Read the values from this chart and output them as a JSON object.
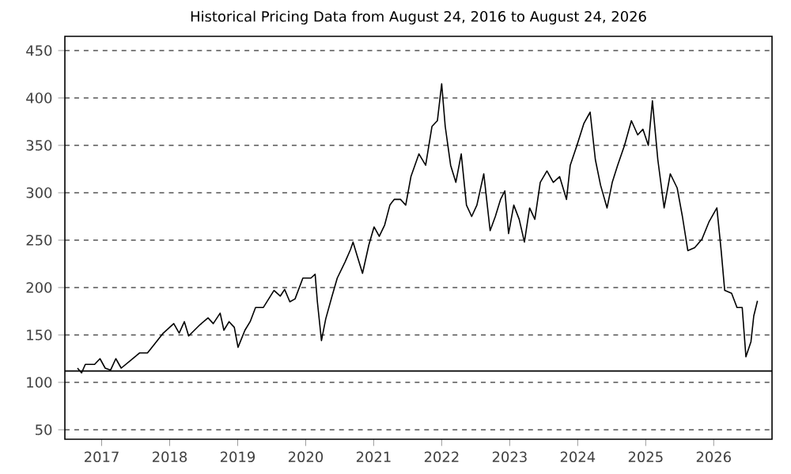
{
  "chart_data": {
    "type": "line",
    "title": "Historical Pricing Data from August 24, 2016 to August 24, 2026",
    "x": [
      "2016-08-24",
      "2016-09-15",
      "2016-10-05",
      "2016-11-24",
      "2016-12-23",
      "2017-01-20",
      "2017-02-18",
      "2017-03-18",
      "2017-04-16",
      "2017-06-11",
      "2017-07-23",
      "2017-09-04",
      "2017-10-02",
      "2017-11-28",
      "2018-01-23",
      "2018-02-21",
      "2018-03-21",
      "2018-04-13",
      "2018-06-14",
      "2018-07-26",
      "2018-08-23",
      "2018-09-29",
      "2018-10-19",
      "2018-11-16",
      "2018-12-14",
      "2019-01-03",
      "2019-02-09",
      "2019-03-09",
      "2019-04-07",
      "2019-05-19",
      "2019-07-15",
      "2019-08-18",
      "2019-09-10",
      "2019-10-08",
      "2019-11-05",
      "2019-12-17",
      "2020-01-29",
      "2020-02-21",
      "2020-03-04",
      "2020-03-26",
      "2020-04-18",
      "2020-05-22",
      "2020-06-19",
      "2020-07-31",
      "2020-08-29",
      "2020-09-12",
      "2020-10-05",
      "2020-11-02",
      "2020-12-06",
      "2021-01-03",
      "2021-01-31",
      "2021-03-01",
      "2021-03-29",
      "2021-04-21",
      "2021-05-25",
      "2021-06-22",
      "2021-07-20",
      "2021-09-01",
      "2021-10-07",
      "2021-11-10",
      "2021-12-09",
      "2022-01-01",
      "2022-01-20",
      "2022-02-18",
      "2022-03-18",
      "2022-04-16",
      "2022-05-14",
      "2022-06-11",
      "2022-07-09",
      "2022-08-15",
      "2022-09-18",
      "2022-10-16",
      "2022-11-13",
      "2022-12-06",
      "2022-12-26",
      "2023-01-23",
      "2023-02-21",
      "2023-03-21",
      "2023-04-18",
      "2023-05-16",
      "2023-06-14",
      "2023-07-20",
      "2023-08-23",
      "2023-09-26",
      "2023-11-02",
      "2023-11-22",
      "2023-12-28",
      "2024-02-03",
      "2024-03-08",
      "2024-04-05",
      "2024-05-03",
      "2024-06-07",
      "2024-07-05",
      "2024-08-03",
      "2024-09-09",
      "2024-10-16",
      "2024-11-19",
      "2024-12-17",
      "2025-01-15",
      "2025-02-06",
      "2025-03-07",
      "2025-04-10",
      "2025-05-13",
      "2025-06-19",
      "2025-07-17",
      "2025-08-15",
      "2025-09-21",
      "2025-10-30",
      "2025-12-06",
      "2026-01-18",
      "2026-02-10",
      "2026-03-01",
      "2026-04-07",
      "2026-05-06",
      "2026-06-03",
      "2026-06-23",
      "2026-07-20",
      "2026-08-04",
      "2026-08-24"
    ],
    "series": [
      {
        "color": "#000000",
        "values": [
          115,
          110,
          119,
          119,
          125,
          115,
          113,
          125,
          115,
          124,
          131,
          131,
          138,
          152,
          162,
          152,
          164,
          149,
          161,
          168,
          162,
          173,
          155,
          164,
          158,
          137,
          155,
          164,
          179,
          179,
          197,
          191,
          198,
          185,
          188,
          210,
          210,
          214,
          185,
          144,
          167,
          191,
          210,
          227,
          240,
          248,
          233,
          215,
          245,
          264,
          254,
          266,
          287,
          293,
          293,
          287,
          317,
          341,
          329,
          370,
          376,
          415,
          370,
          329,
          311,
          341,
          287,
          275,
          287,
          320,
          260,
          275,
          293,
          302,
          257,
          287,
          272,
          248,
          284,
          272,
          311,
          323,
          311,
          317,
          293,
          329,
          350,
          373,
          385,
          335,
          308,
          284,
          311,
          329,
          350,
          376,
          361,
          367,
          350,
          397,
          335,
          284,
          320,
          305,
          275,
          239,
          242,
          251,
          269,
          284,
          239,
          197,
          194,
          179,
          179,
          127,
          143,
          170,
          186
        ]
      }
    ],
    "xlim": [
      "2016-06-17",
      "2026-11-10"
    ],
    "xticks": [
      {
        "value": "2017-01-01",
        "label": "2017"
      },
      {
        "value": "2018-01-01",
        "label": "2018"
      },
      {
        "value": "2019-01-01",
        "label": "2019"
      },
      {
        "value": "2020-01-01",
        "label": "2020"
      },
      {
        "value": "2021-01-01",
        "label": "2021"
      },
      {
        "value": "2022-01-01",
        "label": "2022"
      },
      {
        "value": "2023-01-01",
        "label": "2023"
      },
      {
        "value": "2024-01-01",
        "label": "2024"
      },
      {
        "value": "2025-01-01",
        "label": "2025"
      },
      {
        "value": "2026-01-01",
        "label": "2026"
      }
    ],
    "ylim": [
      40,
      465
    ],
    "yticks": [
      50,
      100,
      150,
      200,
      250,
      300,
      350,
      400,
      450
    ],
    "grid": "y",
    "ref_lines": [
      {
        "axis": "y",
        "value": 112,
        "color": "#000000",
        "line_style": "solid"
      }
    ],
    "marker": "none",
    "line_style": "solid"
  }
}
